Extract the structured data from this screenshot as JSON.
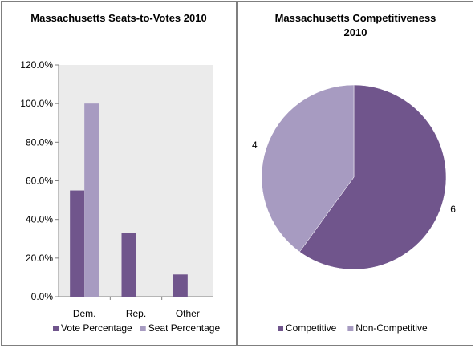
{
  "chart_data": [
    {
      "type": "bar",
      "title": "Massachusetts Seats-to-Votes 2010",
      "categories": [
        "Dem.",
        "Rep.",
        "Other"
      ],
      "series": [
        {
          "name": "Vote Percentage",
          "color": "#70558c",
          "values": [
            55.0,
            33.0,
            11.5
          ]
        },
        {
          "name": "Seat Percentage",
          "color": "#a79bc1",
          "values": [
            100.0,
            0.0,
            0.0
          ]
        }
      ],
      "ylim": [
        0,
        120
      ],
      "yticks": [
        "0.0%",
        "20.0%",
        "40.0%",
        "60.0%",
        "80.0%",
        "100.0%",
        "120.0%"
      ],
      "ytick_values": [
        0,
        20,
        40,
        60,
        80,
        100,
        120
      ],
      "plot_background": "#ebebeb",
      "grid": false,
      "legend_position": "bottom"
    },
    {
      "type": "pie",
      "title_lines": [
        "Massachusetts Competitiveness",
        "2010"
      ],
      "slices": [
        {
          "name": "Competitive",
          "value": 6,
          "label": "6",
          "color": "#70558c"
        },
        {
          "name": "Non-Competitive",
          "value": 4,
          "label": "4",
          "color": "#a79bc1"
        }
      ],
      "start": "12 o'clock, clockwise",
      "legend_position": "bottom"
    }
  ]
}
